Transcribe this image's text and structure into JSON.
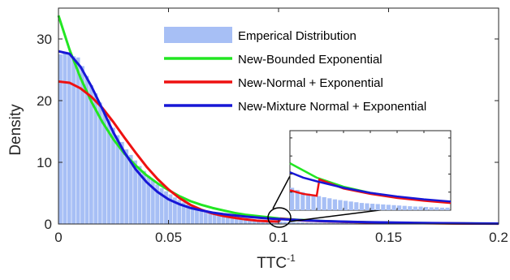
{
  "chart_data": {
    "type": "line",
    "title": "",
    "xlabel": "TTC",
    "xlabel_sup": "-1",
    "ylabel": "Density",
    "xlim": [
      0,
      0.2
    ],
    "ylim": [
      0,
      35
    ],
    "x_ticks": [
      0,
      0.05,
      0.1,
      0.15,
      0.2
    ],
    "x_tick_labels": [
      "0",
      "0.05",
      "0.1",
      "0.15",
      "0.2"
    ],
    "y_ticks": [
      0,
      10,
      20,
      30
    ],
    "y_tick_labels": [
      "0",
      "10",
      "20",
      "30"
    ],
    "grid": false,
    "legend_position": "top-right",
    "histogram": {
      "name": "Emperical Distribution",
      "color": "#a7bff5",
      "bin_width": 0.002,
      "bin_centers": [
        0.001,
        0.003,
        0.005,
        0.007,
        0.009,
        0.011,
        0.013,
        0.015,
        0.017,
        0.019,
        0.021,
        0.023,
        0.025,
        0.027,
        0.029,
        0.031,
        0.033,
        0.035,
        0.037,
        0.039,
        0.041,
        0.043,
        0.045,
        0.047,
        0.049,
        0.051,
        0.053,
        0.055,
        0.057,
        0.059,
        0.061,
        0.063,
        0.065,
        0.067,
        0.069,
        0.071,
        0.073,
        0.075,
        0.077,
        0.079,
        0.081,
        0.083,
        0.085,
        0.087,
        0.089,
        0.091,
        0.093,
        0.095,
        0.097,
        0.099,
        0.101,
        0.103,
        0.105,
        0.107,
        0.109,
        0.111,
        0.113,
        0.115,
        0.117,
        0.119,
        0.121,
        0.123,
        0.125,
        0.127,
        0.129,
        0.131,
        0.133,
        0.135,
        0.137,
        0.139,
        0.141,
        0.143,
        0.145,
        0.147,
        0.149
      ],
      "values": [
        27.5,
        27.8,
        27.6,
        27.2,
        27.0,
        25.6,
        24.0,
        22.5,
        21.2,
        19.7,
        18.2,
        17.0,
        15.6,
        14.4,
        13.3,
        12.1,
        11.2,
        10.3,
        9.4,
        8.6,
        7.8,
        7.1,
        6.4,
        5.8,
        5.3,
        4.8,
        4.3,
        3.9,
        3.5,
        3.2,
        2.9,
        2.6,
        2.3,
        2.1,
        1.9,
        1.7,
        1.5,
        1.4,
        1.2,
        1.1,
        1.0,
        0.9,
        0.8,
        0.75,
        0.7,
        0.62,
        0.56,
        0.5,
        0.46,
        0.42,
        0.39,
        0.36,
        0.33,
        0.3,
        0.28,
        0.26,
        0.24,
        0.22,
        0.2,
        0.19,
        0.18,
        0.17,
        0.16,
        0.15,
        0.14,
        0.13,
        0.12,
        0.11,
        0.1,
        0.1,
        0.09,
        0.08,
        0.08,
        0.07,
        0.07
      ]
    },
    "series": [
      {
        "name": "New-Bounded Exponential",
        "color": "#22e622",
        "x": [
          0,
          0.005,
          0.01,
          0.015,
          0.02,
          0.025,
          0.03,
          0.035,
          0.04,
          0.045,
          0.05,
          0.055,
          0.06,
          0.065,
          0.07,
          0.075,
          0.08,
          0.085,
          0.09,
          0.095,
          0.1,
          0.11,
          0.12,
          0.13,
          0.14,
          0.15,
          0.16,
          0.17,
          0.18,
          0.19,
          0.2
        ],
        "y": [
          33.8,
          28.3,
          23.7,
          19.8,
          16.5,
          13.7,
          11.4,
          9.5,
          7.9,
          6.6,
          5.5,
          4.5,
          3.7,
          3.1,
          2.6,
          2.2,
          1.8,
          1.5,
          1.3,
          1.1,
          0.9,
          0.65,
          0.48,
          0.36,
          0.28,
          0.22,
          0.17,
          0.13,
          0.1,
          0.08,
          0.06
        ]
      },
      {
        "name": "New-Normal + Exponential",
        "color": "#ee1111",
        "x": [
          0,
          0.005,
          0.01,
          0.015,
          0.02,
          0.025,
          0.03,
          0.035,
          0.04,
          0.045,
          0.05,
          0.055,
          0.06,
          0.065,
          0.07,
          0.075,
          0.08,
          0.085,
          0.09,
          0.095,
          0.1,
          0.101,
          0.11,
          0.12,
          0.13,
          0.14,
          0.15,
          0.16,
          0.17,
          0.18,
          0.19,
          0.2
        ],
        "y": [
          23.1,
          22.9,
          22.0,
          20.6,
          18.8,
          16.5,
          14.0,
          11.6,
          9.3,
          7.3,
          5.6,
          4.2,
          3.1,
          2.3,
          1.7,
          1.3,
          1.0,
          0.75,
          0.55,
          0.45,
          0.4,
          0.85,
          0.6,
          0.45,
          0.34,
          0.26,
          0.2,
          0.15,
          0.12,
          0.09,
          0.07,
          0.05
        ]
      },
      {
        "name": "New-Mixture Normal + Exponential",
        "color": "#1717d6",
        "x": [
          0,
          0.005,
          0.01,
          0.015,
          0.02,
          0.025,
          0.03,
          0.035,
          0.04,
          0.045,
          0.05,
          0.055,
          0.06,
          0.065,
          0.07,
          0.075,
          0.08,
          0.085,
          0.09,
          0.095,
          0.1,
          0.11,
          0.12,
          0.13,
          0.14,
          0.15,
          0.16,
          0.17,
          0.18,
          0.19,
          0.2
        ],
        "y": [
          28.0,
          27.6,
          25.5,
          22.3,
          18.6,
          14.8,
          11.6,
          8.9,
          6.8,
          5.2,
          4.0,
          3.2,
          2.6,
          2.2,
          1.85,
          1.6,
          1.4,
          1.2,
          1.05,
          0.9,
          0.8,
          0.62,
          0.48,
          0.38,
          0.3,
          0.24,
          0.19,
          0.15,
          0.12,
          0.09,
          0.07
        ]
      }
    ],
    "inset": {
      "type": "zoom",
      "zoom_target_x": 0.1,
      "zoom_target_y": 0.8
    }
  }
}
